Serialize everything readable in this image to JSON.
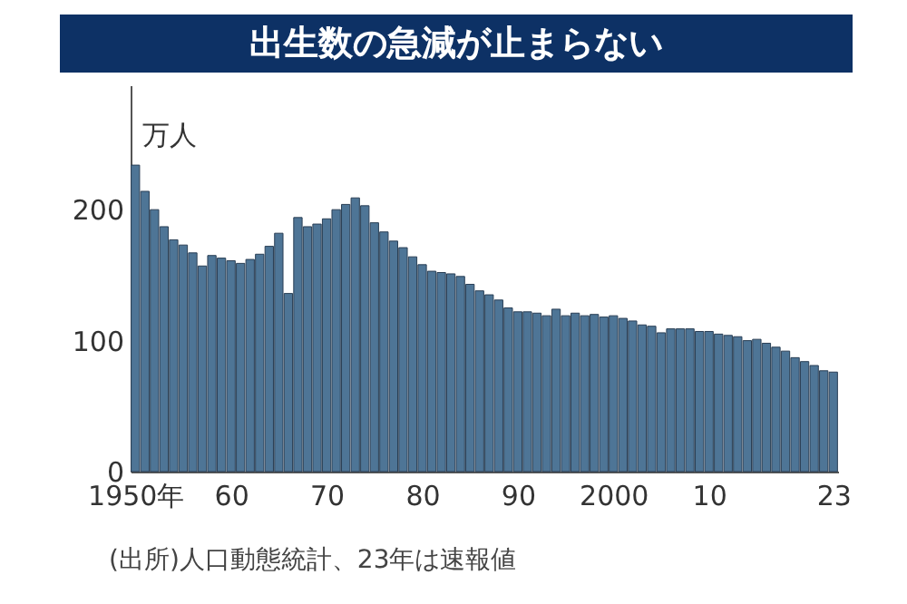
{
  "chart_data": {
    "type": "bar",
    "title": "出生数の急減が止まらない",
    "ylabel": "万人",
    "annotations": [
      "(出所)人口動態統計、23年は速報値"
    ],
    "x": [
      1950,
      1951,
      1952,
      1953,
      1954,
      1955,
      1956,
      1957,
      1958,
      1959,
      1960,
      1961,
      1962,
      1963,
      1964,
      1965,
      1966,
      1967,
      1968,
      1969,
      1970,
      1971,
      1972,
      1973,
      1974,
      1975,
      1976,
      1977,
      1978,
      1979,
      1980,
      1981,
      1982,
      1983,
      1984,
      1985,
      1986,
      1987,
      1988,
      1989,
      1990,
      1991,
      1992,
      1993,
      1994,
      1995,
      1996,
      1997,
      1998,
      1999,
      2000,
      2001,
      2002,
      2003,
      2004,
      2005,
      2006,
      2007,
      2008,
      2009,
      2010,
      2011,
      2012,
      2013,
      2014,
      2015,
      2016,
      2017,
      2018,
      2019,
      2020,
      2021,
      2022,
      2023
    ],
    "values": [
      234,
      214,
      200,
      187,
      177,
      173,
      167,
      157,
      165,
      163,
      161,
      159,
      162,
      166,
      172,
      182,
      136,
      194,
      187,
      189,
      193,
      200,
      204,
      209,
      203,
      190,
      183,
      176,
      171,
      164,
      158,
      153,
      152,
      151,
      149,
      143,
      138,
      135,
      131,
      125,
      122,
      122,
      121,
      119,
      124,
      119,
      121,
      119,
      120,
      118,
      119,
      117,
      115,
      112,
      111,
      106,
      109,
      109,
      109,
      107,
      107,
      105,
      104,
      103,
      100,
      101,
      98,
      95,
      92,
      87,
      84,
      81,
      77,
      76
    ],
    "color": "#4e7596",
    "xlim": [
      1949.5,
      2023.5
    ],
    "xticks": [
      {
        "value": 1950,
        "label": "1950年"
      },
      {
        "value": 1960,
        "label": "60"
      },
      {
        "value": 1970,
        "label": "70"
      },
      {
        "value": 1980,
        "label": "80"
      },
      {
        "value": 1990,
        "label": "90"
      },
      {
        "value": 2000,
        "label": "2000"
      },
      {
        "value": 2010,
        "label": "10"
      },
      {
        "value": 2023,
        "label": "23"
      }
    ],
    "ylim": [
      0,
      295
    ],
    "yticks": [
      0,
      100,
      200
    ],
    "grid": false
  }
}
